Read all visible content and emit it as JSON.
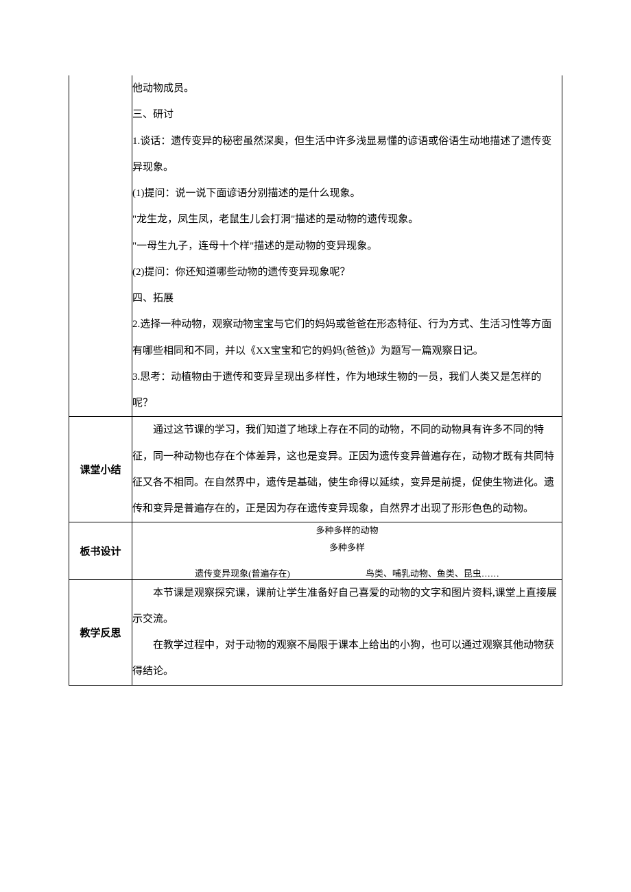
{
  "row1": {
    "p1": "他动物成员。",
    "p2": "三、研讨",
    "p3": "1.谈话：遗传变异的秘密虽然深奥，但生活中许多浅显易懂的谚语或俗语生动地描述了遗传变异现象。",
    "p4": "(1)提问：说一说下面谚语分别描述的是什么现象。",
    "p5": "\"龙生龙，凤生凤，老鼠生儿会打洞\"描述的是动物的遗传现象。",
    "p6": "\"一母生九子，连母十个样\"描述的是动物的变异现象。",
    "p7": "(2)提问：你还知道哪些动物的遗传变异现象呢？",
    "p8": "四、拓展",
    "p9": "2.选择一种动物，观察动物宝宝与它们的妈妈或爸爸在形态特征、行为方式、生活习性等方面有哪些相同和不同，并以《XX宝宝和它的妈妈(爸爸)》为题写一篇观察日记。",
    "p10": "3.思考：动植物由于遗传和变异呈现出多样性，作为地球生物的一员，我们人类又是怎样的呢？"
  },
  "row2": {
    "label": "课堂小结",
    "body": "通过这节课的学习，我们知道了地球上存在不同的动物，不同的动物具有许多不同的特征，同一种动物也存在个体差异，这也是变异。正因为遗传变异普遍存在，动物才既有共同特征又各不相同。在自然界中，遗传是基础，使生命得以延续，变异是前提，促使生物进化。遗传和变异是普遍存在的，正是因为存在遗传变异现象，自然界才出现了形形色色的动物。"
  },
  "row3": {
    "label": "板书设计",
    "title1": "多种多样的动物",
    "title2": "多种多样",
    "left": "遗传变异现象(普遍存在)",
    "right": "鸟类、哺乳动物、鱼类、昆虫……"
  },
  "row4": {
    "label": "教学反思",
    "p1": "本节课是观察探究课，课前让学生准备好自己喜爱的动物的文字和图片资料,课堂上直接展示交流。",
    "p2": "在教学过程中，对于动物的观察不局限于课本上给出的小狗，也可以通过观察其他动物获得结论。"
  }
}
